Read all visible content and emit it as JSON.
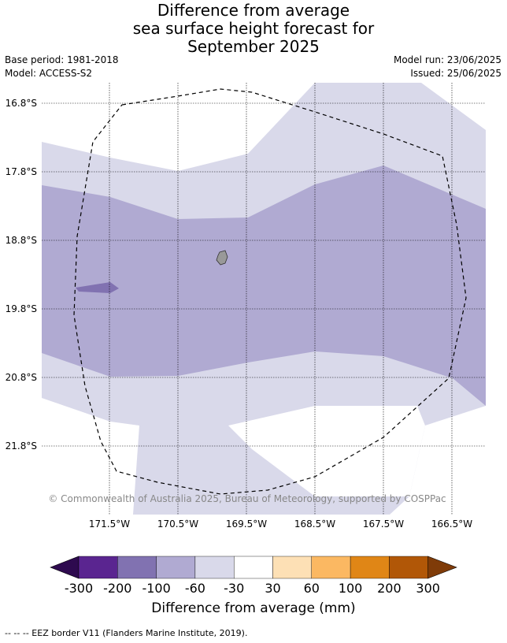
{
  "header": {
    "title_lines": [
      "Difference from average",
      "sea surface height forecast for",
      "September 2025"
    ],
    "base_period": "Base period: 1981-2018",
    "model": "Model: ACCESS-S2",
    "model_run": "Model run: 23/06/2025",
    "issued": "Issued: 25/06/2025"
  },
  "map": {
    "lat_labels": [
      "16.8°S",
      "17.8°S",
      "18.8°S",
      "19.8°S",
      "20.8°S",
      "21.8°S"
    ],
    "lon_labels": [
      "171.5°W",
      "170.5°W",
      "169.5°W",
      "168.5°W",
      "167.5°W",
      "166.5°W"
    ],
    "copyright": "© Commonwealth of Australia 2025, Bureau of Meteorology, supported by COSPPac",
    "colors": {
      "very_low": "#2e0a4f",
      "m300_200": "#5a2590",
      "m200_100": "#8172b1",
      "m100_60": "#b0aad2",
      "m60_30": "#d9d9ea",
      "m30_30": "#ffffff",
      "p30_60": "#fde0b5",
      "p60_100": "#fbb862",
      "p100_200": "#e08616",
      "p200_300": "#b15707",
      "very_high": "#7f3b08",
      "land": "#999999"
    }
  },
  "colorbar": {
    "tick_labels": [
      "-300",
      "-200",
      "-100",
      "-60",
      "-30",
      "30",
      "60",
      "100",
      "200",
      "300"
    ],
    "title": "Difference from average (mm)"
  },
  "footer": {
    "legend": "--  --  -- EEZ border V11 (Flanders Marine Institute, 2019)."
  }
}
